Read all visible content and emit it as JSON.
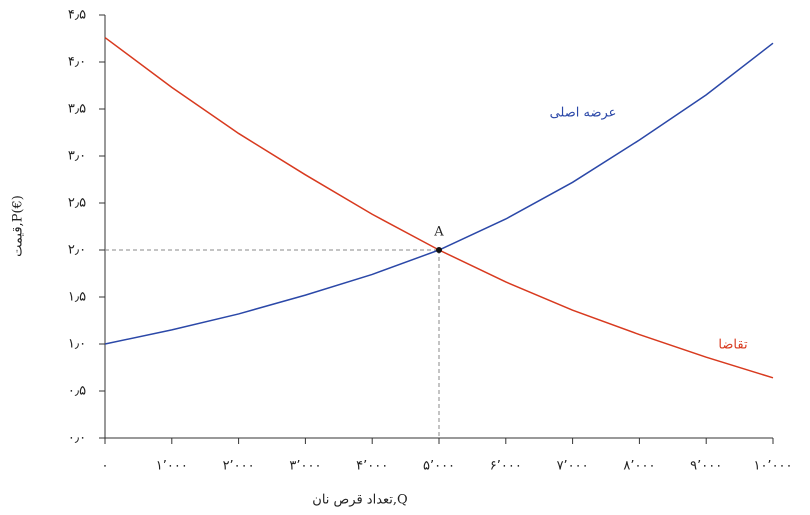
{
  "chart_data": {
    "type": "line",
    "x_label": "تعداد قرص نان,Q",
    "y_label": "قیمت,P(€)",
    "x": [
      0,
      1000,
      2000,
      3000,
      4000,
      5000,
      6000,
      7000,
      8000,
      9000,
      10000
    ],
    "series": [
      {
        "name": "عرضه اصلی",
        "color": "#2b48a8",
        "values": [
          1.0,
          1.15,
          1.32,
          1.52,
          1.74,
          2.0,
          2.33,
          2.72,
          3.17,
          3.65,
          4.2
        ]
      },
      {
        "name": "تقاضا",
        "color": "#d83a1f",
        "values": [
          4.26,
          3.73,
          3.24,
          2.8,
          2.38,
          2.0,
          1.66,
          1.36,
          1.1,
          0.86,
          0.64
        ]
      }
    ],
    "point": {
      "label": "A",
      "x": 5000,
      "y": 2.0
    },
    "xlim": [
      0,
      10000
    ],
    "ylim": [
      0,
      4.5
    ],
    "xticks": [
      {
        "value": 0,
        "label": "۰"
      },
      {
        "value": 1000,
        "label": "۱٬۰۰۰"
      },
      {
        "value": 2000,
        "label": "۲٬۰۰۰"
      },
      {
        "value": 3000,
        "label": "۳٬۰۰۰"
      },
      {
        "value": 4000,
        "label": "۴٬۰۰۰"
      },
      {
        "value": 5000,
        "label": "۵٬۰۰۰"
      },
      {
        "value": 6000,
        "label": "۶٬۰۰۰"
      },
      {
        "value": 7000,
        "label": "۷٬۰۰۰"
      },
      {
        "value": 8000,
        "label": "۸٬۰۰۰"
      },
      {
        "value": 9000,
        "label": "۹٬۰۰۰"
      },
      {
        "value": 10000,
        "label": "۱۰٬۰۰۰"
      }
    ],
    "yticks": [
      {
        "value": 0,
        "label": "۰٫۰"
      },
      {
        "value": 0.5,
        "label": "۰٫۵"
      },
      {
        "value": 1,
        "label": "۱٫۰"
      },
      {
        "value": 1.5,
        "label": "۱٫۵"
      },
      {
        "value": 2,
        "label": "۲٫۰"
      },
      {
        "value": 2.5,
        "label": "۲٫۵"
      },
      {
        "value": 3,
        "label": "۳٫۰"
      },
      {
        "value": 3.5,
        "label": "۳٫۵"
      },
      {
        "value": 4,
        "label": "۴٫۰"
      },
      {
        "value": 4.5,
        "label": "۴٫۵"
      }
    ]
  }
}
